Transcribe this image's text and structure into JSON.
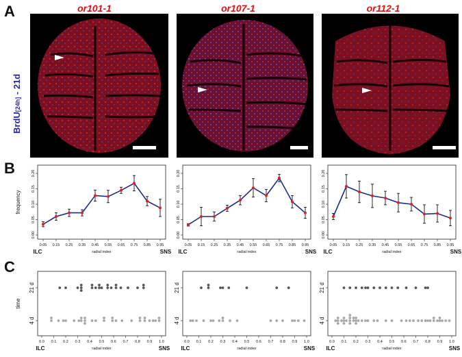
{
  "panels": {
    "a": "A",
    "b": "B",
    "c": "C"
  },
  "strains": [
    "or101-1",
    "or107-1",
    "or112-1"
  ],
  "label_a": {
    "main": "BrdU",
    "sub": "[24h]",
    "suffix": " - 21d"
  },
  "colors": {
    "strain": "#e01010",
    "line": "#1a2b8a",
    "marker": "#e02020",
    "dot21": "#555555",
    "dot4": "#a8a8a8",
    "label_blue": "#2a2aa0"
  },
  "axis_text": {
    "frequency": "frequency",
    "radial": "radial index",
    "time": "time",
    "ilc": "ILC",
    "sns": "SNS"
  },
  "chart_data": [
    {
      "type": "line",
      "strain": "or101-1",
      "x": [
        0.05,
        0.15,
        0.25,
        0.35,
        0.45,
        0.55,
        0.65,
        0.75,
        0.85,
        0.95
      ],
      "values": [
        0.035,
        0.06,
        0.072,
        0.072,
        0.128,
        0.125,
        0.145,
        0.168,
        0.11,
        0.088
      ],
      "err": [
        0.008,
        0.012,
        0.012,
        0.01,
        0.018,
        0.02,
        0.01,
        0.025,
        0.015,
        0.028
      ],
      "ylim": [
        0,
        0.2
      ],
      "yticks": [
        "0.00",
        "0.05",
        "0.10",
        "0.15",
        "0.20"
      ],
      "ylabel": "frequency",
      "xlabel": "radial index"
    },
    {
      "type": "line",
      "strain": "or107-1",
      "x": [
        0.05,
        0.15,
        0.25,
        0.35,
        0.45,
        0.55,
        0.65,
        0.75,
        0.85,
        0.95
      ],
      "values": [
        0.033,
        0.06,
        0.06,
        0.087,
        0.113,
        0.153,
        0.128,
        0.185,
        0.108,
        0.072
      ],
      "err": [
        0.004,
        0.03,
        0.015,
        0.01,
        0.015,
        0.03,
        0.02,
        0.012,
        0.02,
        0.018
      ],
      "ylim": [
        0,
        0.2
      ],
      "yticks": [
        "0.00",
        "0.05",
        "0.10",
        "0.15",
        "0.20"
      ],
      "xlabel": "radial index"
    },
    {
      "type": "line",
      "strain": "or112-1",
      "x": [
        0.05,
        0.15,
        0.25,
        0.35,
        0.45,
        0.55,
        0.65,
        0.75,
        0.85,
        0.95
      ],
      "values": [
        0.06,
        0.158,
        0.14,
        0.127,
        0.12,
        0.105,
        0.1,
        0.068,
        0.07,
        0.055
      ],
      "err": [
        0.01,
        0.038,
        0.035,
        0.038,
        0.022,
        0.03,
        0.022,
        0.03,
        0.028,
        0.025
      ],
      "ylim": [
        0,
        0.2
      ],
      "yticks": [
        "0.00",
        "0.05",
        "0.10",
        "0.15",
        "0.20"
      ],
      "xlabel": "radial index"
    },
    {
      "type": "scatter",
      "strain": "or101-1",
      "ylabel": "time",
      "categories": [
        "21 d",
        "4 d"
      ],
      "xlabel": "radial index",
      "xticks": [
        "0.0",
        "0.1",
        "0.2",
        "0.3",
        "0.4",
        "0.5",
        "0.6",
        "0.7",
        "0.8",
        "0.9",
        "1.0"
      ],
      "series": [
        {
          "name": "21 d",
          "x": [
            0.15,
            0.2,
            0.3,
            0.33,
            0.33,
            0.33,
            0.42,
            0.45,
            0.48,
            0.5,
            0.42,
            0.48,
            0.55,
            0.58,
            0.62,
            0.55,
            0.62,
            0.66,
            0.72,
            0.8,
            0.85,
            0.85
          ]
        },
        {
          "name": "4 d",
          "x": [
            0.08,
            0.08,
            0.14,
            0.18,
            0.2,
            0.27,
            0.31,
            0.33,
            0.33,
            0.36,
            0.36,
            0.36,
            0.42,
            0.45,
            0.52,
            0.52,
            0.59,
            0.59,
            0.62,
            0.67,
            0.75,
            0.82,
            0.82,
            0.86,
            0.86,
            0.9,
            0.93,
            0.95,
            0.98,
            0.98
          ]
        }
      ]
    },
    {
      "type": "scatter",
      "strain": "or107-1",
      "categories": [
        "21 d",
        "4 d"
      ],
      "xlabel": "radial index",
      "xticks": [
        "0.0",
        "0.1",
        "0.2",
        "0.3",
        "0.4",
        "0.5",
        "0.6",
        "0.7",
        "0.8",
        "0.9",
        "1.0"
      ],
      "series": [
        {
          "name": "21 d",
          "x": [
            0.12,
            0.18,
            0.18,
            0.28,
            0.3,
            0.35,
            0.5,
            0.75,
            0.85
          ]
        },
        {
          "name": "4 d",
          "x": [
            0.03,
            0.05,
            0.08,
            0.14,
            0.2,
            0.22,
            0.27,
            0.3,
            0.3,
            0.36,
            0.42,
            0.7,
            0.75,
            0.8,
            0.88,
            0.9,
            0.93,
            0.98
          ]
        }
      ]
    },
    {
      "type": "scatter",
      "strain": "or112-1",
      "categories": [
        "21 d",
        "4 d"
      ],
      "xlabel": "radial index",
      "xticks": [
        "0.0",
        "0.1",
        "0.2",
        "0.3",
        "0.4",
        "0.5",
        "0.6",
        "0.7",
        "0.8",
        "0.9",
        "1.0"
      ],
      "series": [
        {
          "name": "21 d",
          "x": [
            0.1,
            0.15,
            0.2,
            0.25,
            0.28,
            0.3,
            0.35,
            0.4,
            0.45,
            0.5,
            0.55,
            0.62,
            0.7,
            0.78,
            0.8
          ]
        },
        {
          "name": "4 d",
          "x": [
            0.03,
            0.05,
            0.05,
            0.05,
            0.08,
            0.1,
            0.1,
            0.1,
            0.12,
            0.15,
            0.15,
            0.15,
            0.15,
            0.18,
            0.18,
            0.2,
            0.2,
            0.2,
            0.22,
            0.25,
            0.28,
            0.3,
            0.35,
            0.38,
            0.45,
            0.5,
            0.58,
            0.62,
            0.65,
            0.68,
            0.72,
            0.75,
            0.78,
            0.8,
            0.82,
            0.85,
            0.85,
            0.88,
            0.9,
            0.9,
            0.92,
            0.95,
            0.98
          ]
        }
      ]
    }
  ]
}
